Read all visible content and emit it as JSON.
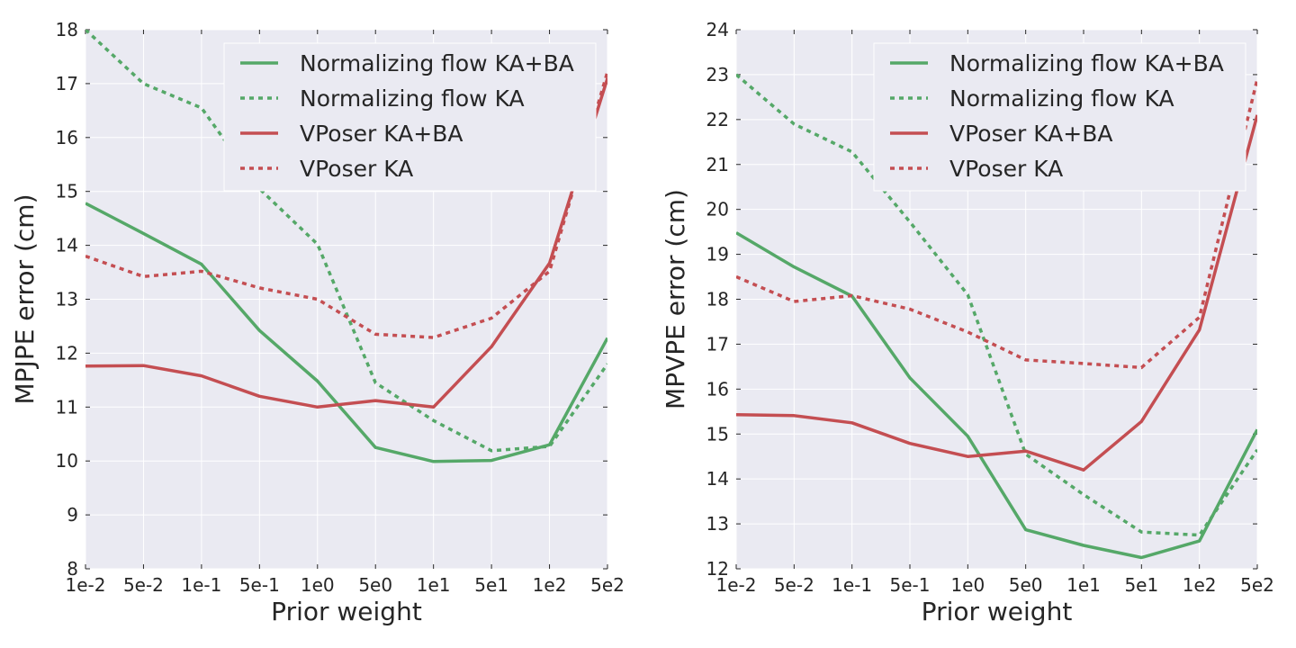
{
  "chart_data": [
    {
      "type": "line",
      "title": "",
      "xlabel": "Prior weight",
      "ylabel": "MPJPE error (cm)",
      "categories": [
        "1e-2",
        "5e-2",
        "1e-1",
        "5e-1",
        "1e0",
        "5e0",
        "1e1",
        "5e1",
        "1e2",
        "5e2"
      ],
      "ylim": [
        8,
        18
      ],
      "yticks": [
        "8",
        "9",
        "10",
        "11",
        "12",
        "13",
        "14",
        "15",
        "16",
        "17",
        "18"
      ],
      "grid": true,
      "legend": "top-right",
      "series": [
        {
          "name": "Normalizing flow KA+BA",
          "color": "#55a868",
          "style": "solid",
          "values": [
            14.78,
            14.22,
            13.65,
            12.42,
            11.48,
            10.25,
            9.99,
            10.01,
            10.3,
            12.28
          ]
        },
        {
          "name": "Normalizing flow KA",
          "color": "#55a868",
          "style": "dotted",
          "values": [
            18.0,
            17.0,
            16.55,
            15.05,
            14.02,
            11.45,
            10.75,
            10.19,
            10.27,
            11.8
          ]
        },
        {
          "name": "VPoser KA+BA",
          "color": "#c44e52",
          "style": "solid",
          "values": [
            11.76,
            11.77,
            11.58,
            11.2,
            11.0,
            11.12,
            11.0,
            12.12,
            13.67,
            17.1
          ]
        },
        {
          "name": "VPoser KA",
          "color": "#c44e52",
          "style": "dotted",
          "values": [
            13.8,
            13.42,
            13.52,
            13.21,
            13.0,
            12.35,
            12.29,
            12.65,
            13.52,
            17.22
          ]
        }
      ]
    },
    {
      "type": "line",
      "title": "",
      "xlabel": "Prior weight",
      "ylabel": "MPVPE error (cm)",
      "categories": [
        "1e-2",
        "5e-2",
        "1e-1",
        "5e-1",
        "1e0",
        "5e0",
        "1e1",
        "5e1",
        "1e2",
        "5e2"
      ],
      "ylim": [
        12,
        24
      ],
      "yticks": [
        "12",
        "13",
        "14",
        "15",
        "16",
        "17",
        "18",
        "19",
        "20",
        "21",
        "22",
        "23",
        "24"
      ],
      "grid": true,
      "legend": "top-right",
      "series": [
        {
          "name": "Normalizing flow KA+BA",
          "color": "#55a868",
          "style": "solid",
          "values": [
            19.48,
            18.72,
            18.07,
            16.25,
            14.95,
            12.87,
            12.52,
            12.25,
            12.62,
            15.1
          ]
        },
        {
          "name": "Normalizing flow KA",
          "color": "#55a868",
          "style": "dotted",
          "values": [
            23.0,
            21.9,
            21.28,
            19.72,
            18.1,
            14.55,
            13.65,
            12.82,
            12.75,
            14.65
          ]
        },
        {
          "name": "VPoser KA+BA",
          "color": "#c44e52",
          "style": "solid",
          "values": [
            15.43,
            15.41,
            15.25,
            14.79,
            14.5,
            14.62,
            14.2,
            15.28,
            17.32,
            22.1
          ]
        },
        {
          "name": "VPoser KA",
          "color": "#c44e52",
          "style": "dotted",
          "values": [
            18.5,
            17.95,
            18.08,
            17.78,
            17.27,
            16.65,
            16.57,
            16.48,
            17.6,
            22.9
          ]
        }
      ]
    }
  ]
}
